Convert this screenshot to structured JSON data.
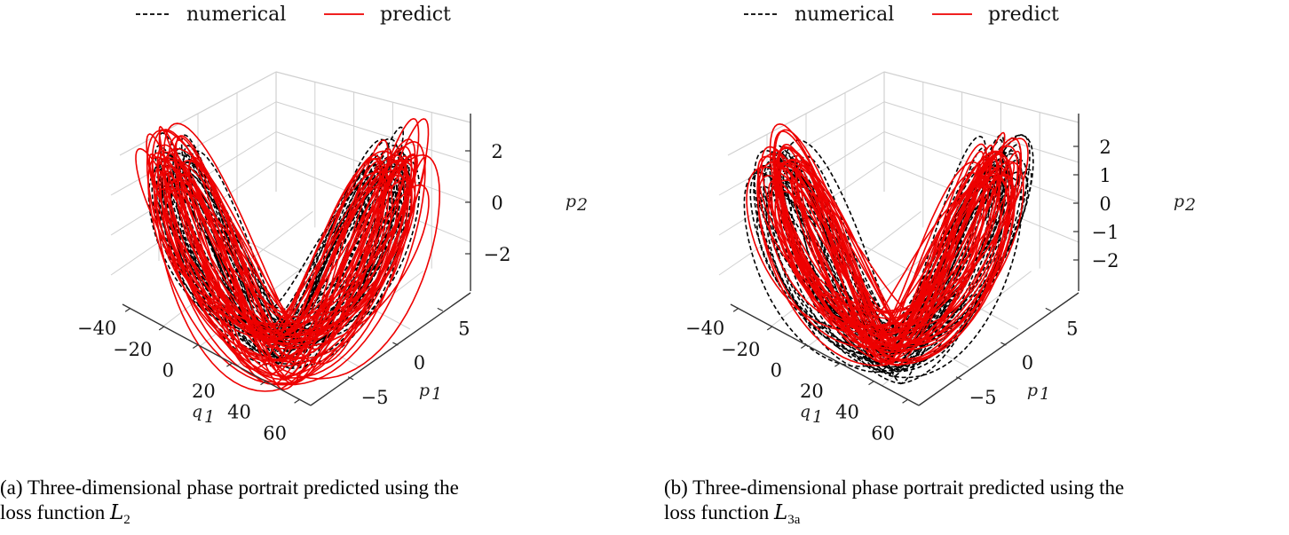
{
  "chart_data": [
    {
      "type": "line",
      "projection": "3d",
      "title": "",
      "legend": {
        "placement": "top",
        "entries": [
          "numerical",
          "predict"
        ]
      },
      "series": [
        {
          "name": "numerical",
          "color": "#000000",
          "style": "dashed"
        },
        {
          "name": "predict",
          "color": "#ee0000",
          "style": "solid"
        }
      ],
      "xlabel": "q1",
      "ylabel": "p1",
      "zlabel": "p2",
      "x_ticks": [
        "−40",
        "−20",
        "0",
        "20",
        "40",
        "60"
      ],
      "y_ticks": [
        "−5",
        "0",
        "5"
      ],
      "z_ticks": [
        "2",
        "0",
        "−2"
      ],
      "xlim": [
        -45,
        65
      ],
      "ylim": [
        -9,
        9
      ],
      "zlim": [
        -3.5,
        3.5
      ],
      "caption": {
        "text": "(a) Three-dimensional phase portrait predicted using the",
        "line2": "loss function ",
        "math": "L",
        "sub": "2"
      }
    },
    {
      "type": "line",
      "projection": "3d",
      "title": "",
      "legend": {
        "placement": "top",
        "entries": [
          "numerical",
          "predict"
        ]
      },
      "series": [
        {
          "name": "numerical",
          "color": "#000000",
          "style": "dashed"
        },
        {
          "name": "predict",
          "color": "#ee0000",
          "style": "solid"
        }
      ],
      "xlabel": "q1",
      "ylabel": "p1",
      "zlabel": "p2",
      "x_ticks": [
        "−40",
        "−20",
        "0",
        "20",
        "40",
        "60"
      ],
      "y_ticks": [
        "−5",
        "0",
        "5"
      ],
      "z_ticks": [
        "2",
        "1",
        "0",
        "−1",
        "−2"
      ],
      "xlim": [
        -45,
        65
      ],
      "ylim": [
        -9,
        9
      ],
      "zlim": [
        -2.6,
        2.6
      ],
      "caption": {
        "text": "(b) Three-dimensional phase portrait predicted using the",
        "line2": "loss function ",
        "math": "L",
        "sub": "3a"
      }
    }
  ]
}
